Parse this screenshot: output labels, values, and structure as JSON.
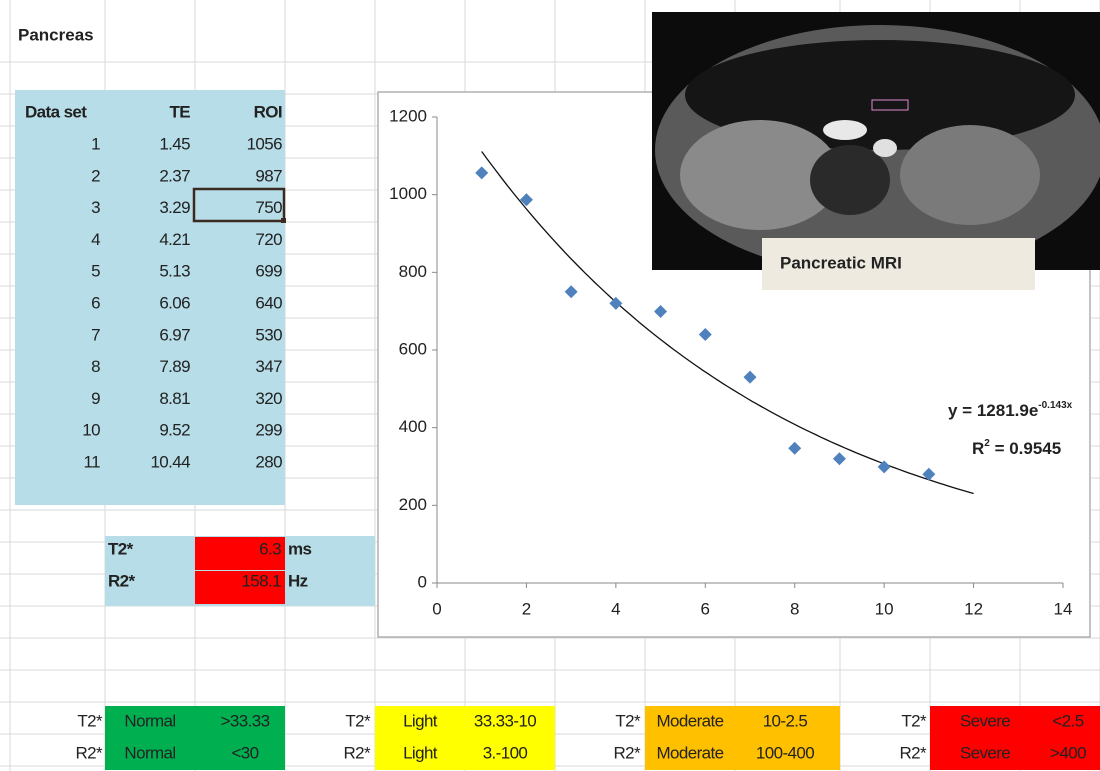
{
  "sheet": {
    "title": "Pancreas",
    "table": {
      "headers": [
        "Data set",
        "TE",
        "ROI"
      ],
      "rows": [
        [
          1,
          1.45,
          1056
        ],
        [
          2,
          2.37,
          987
        ],
        [
          3,
          3.29,
          750
        ],
        [
          4,
          4.21,
          720
        ],
        [
          5,
          5.13,
          699
        ],
        [
          6,
          6.06,
          640
        ],
        [
          7,
          6.97,
          530
        ],
        [
          8,
          7.89,
          347
        ],
        [
          9,
          8.81,
          320
        ],
        [
          10,
          9.52,
          299
        ],
        [
          11,
          10.44,
          280
        ]
      ]
    },
    "results": [
      {
        "label": "T2*",
        "value": 6.3,
        "unit": "ms"
      },
      {
        "label": "R2*",
        "value": 158.1,
        "unit": "Hz"
      }
    ],
    "legend_row_labels": [
      "T2*",
      "R2*"
    ],
    "legend": [
      {
        "level": "Normal",
        "t2": ">33.33",
        "r2": "<30",
        "color": "#00b050"
      },
      {
        "level": "Light",
        "t2": "33.33-10",
        "r2": "3.-100",
        "color": "#ffff00"
      },
      {
        "level": "Moderate",
        "t2": "10-2.5",
        "r2": "100-400",
        "color": "#ffc000"
      },
      {
        "level": "Severe",
        "t2": "<2.5",
        "r2": ">400",
        "color": "#ff0000"
      }
    ],
    "image_caption": "Pancreatic MRI"
  },
  "chart_data": {
    "type": "scatter",
    "x": [
      1,
      2,
      3,
      4,
      5,
      6,
      7,
      8,
      9,
      10,
      11
    ],
    "values": [
      1056,
      987,
      750,
      720,
      699,
      640,
      530,
      347,
      320,
      299,
      280
    ],
    "color": "#4f81bd",
    "xlim": [
      0,
      14
    ],
    "xticks": [
      0,
      2,
      4,
      6,
      8,
      10,
      12,
      14
    ],
    "ylim": [
      0,
      1200
    ],
    "yticks": [
      0,
      200,
      400,
      600,
      800,
      1000,
      1200
    ],
    "trendline": {
      "a": 1281.9,
      "b": -0.143,
      "from": 1,
      "to": 12
    },
    "equation": {
      "text": "y = 1281.9e",
      "exponent": "-0.143x"
    },
    "r_squared": {
      "text": "R",
      "exponent": "2",
      "rest": " = 0.9545"
    }
  }
}
